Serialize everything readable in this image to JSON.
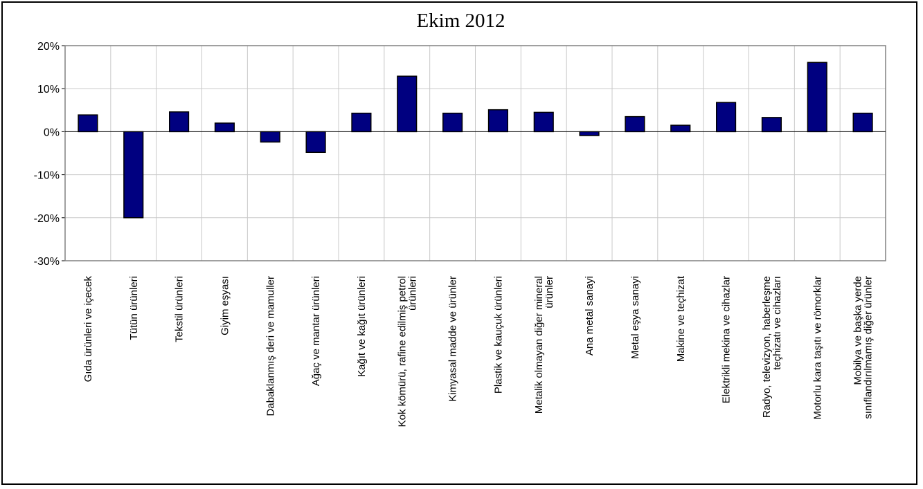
{
  "chart_data": {
    "type": "bar",
    "title": "Ekim 2012",
    "xlabel": "",
    "ylabel": "",
    "ylim": [
      -30,
      20
    ],
    "y_ticks": [
      20,
      10,
      0,
      -10,
      -20,
      -30
    ],
    "y_tick_labels": [
      "20%",
      "10%",
      "0%",
      "-10%",
      "-20%",
      "-30%"
    ],
    "grid": true,
    "bar_color": "#000080",
    "categories": [
      "Gıda ürünleri ve içecek",
      "Tütün ürünleri",
      "Tekstil ürünleri",
      "Giyim eşyası",
      "Dabaklanmış deri ve mamuller",
      "Ağaç ve mantar ürünleri",
      "Kağıt ve kağıt ürünleri",
      "Kok kömürü, rafine edilmiş petrol ürünleri",
      "Kimyasal madde ve ürünler",
      "Plastik ve kauçuk ürünleri",
      "Metalik olmayan diğer mineral ürünler",
      "Ana metal sanayi",
      "Metal eşya sanayi",
      "Makine ve teçhizat",
      "Elektrikli mekina ve cihazlar",
      "Radyo, televizyon, haberleşme teçhizatı ve cihazları",
      "Motorlu kara taşıtı ve römorklar",
      "Mobilya ve başka yerde sınıflandırılmamış diğer ürünler"
    ],
    "category_label_lines": [
      [
        "Gıda ürünleri ve içecek"
      ],
      [
        "Tütün ürünleri"
      ],
      [
        "Tekstil ürünleri"
      ],
      [
        "Giyim eşyası"
      ],
      [
        "Dabaklanmış deri ve mamuller"
      ],
      [
        "Ağaç ve mantar ürünleri"
      ],
      [
        "Kağıt ve kağıt ürünleri"
      ],
      [
        "Kok kömürü, rafine edilmiş petrol",
        "ürünleri"
      ],
      [
        "Kimyasal madde ve ürünler"
      ],
      [
        "Plastik ve kauçuk ürünleri"
      ],
      [
        "Metalik olmayan diğer mineral",
        "ürünler"
      ],
      [
        "Ana metal sanayi"
      ],
      [
        "Metal eşya sanayi"
      ],
      [
        "Makine ve teçhizat"
      ],
      [
        "Elektrikli mekina ve cihazlar"
      ],
      [
        "Radyo, televizyon, haberleşme",
        "teçhizatı ve cihazları"
      ],
      [
        "Motorlu kara taşıtı ve römorklar"
      ],
      [
        "Mobilya ve başka yerde",
        "sınıflandırılmamış diğer ürünler"
      ]
    ],
    "values": [
      3.9,
      -20.0,
      4.6,
      2.0,
      -2.4,
      -4.8,
      4.3,
      12.9,
      4.3,
      5.1,
      4.5,
      -0.9,
      3.5,
      1.5,
      6.8,
      3.3,
      16.1,
      4.3
    ]
  }
}
